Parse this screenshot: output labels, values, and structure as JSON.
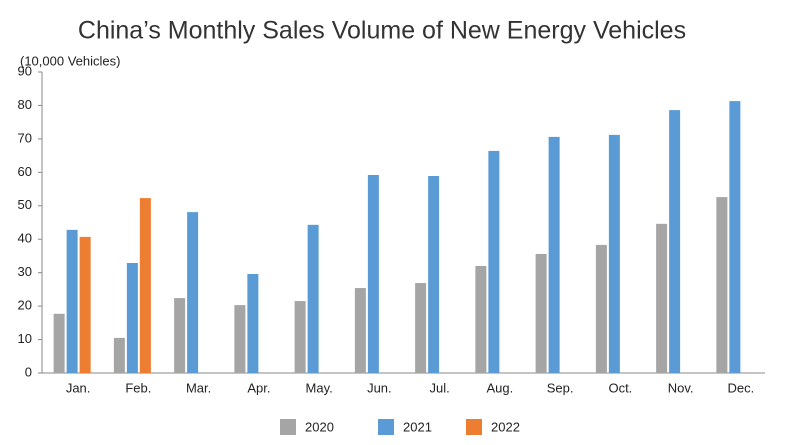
{
  "chart_data": {
    "type": "bar",
    "title": "China’s Monthly Sales Volume of New Energy Vehicles",
    "y_label": "(10,000 Vehicles)",
    "categories": [
      "Jan.",
      "Feb.",
      "Mar.",
      "Apr.",
      "May.",
      "Jun.",
      "Jul.",
      "Aug.",
      "Sep.",
      "Oct.",
      "Nov.",
      "Dec."
    ],
    "series": [
      {
        "name": "2020",
        "color": "#a5a5a5",
        "values": [
          17.7,
          10.5,
          22.4,
          20.3,
          21.5,
          25.4,
          26.9,
          32.0,
          35.6,
          38.3,
          44.6,
          52.6
        ]
      },
      {
        "name": "2021",
        "color": "#5b9bd5",
        "values": [
          42.8,
          32.9,
          48.1,
          29.6,
          44.3,
          59.2,
          58.9,
          66.4,
          70.6,
          71.2,
          78.6,
          81.3
        ]
      },
      {
        "name": "2022",
        "color": "#ed7d31",
        "values": [
          40.7,
          52.3,
          null,
          null,
          null,
          null,
          null,
          null,
          null,
          null,
          null,
          null
        ]
      }
    ],
    "ylim": [
      0,
      90
    ],
    "yticks": [
      0,
      10,
      20,
      30,
      40,
      50,
      60,
      70,
      80,
      90
    ],
    "grid": false,
    "legend": "bottom"
  }
}
